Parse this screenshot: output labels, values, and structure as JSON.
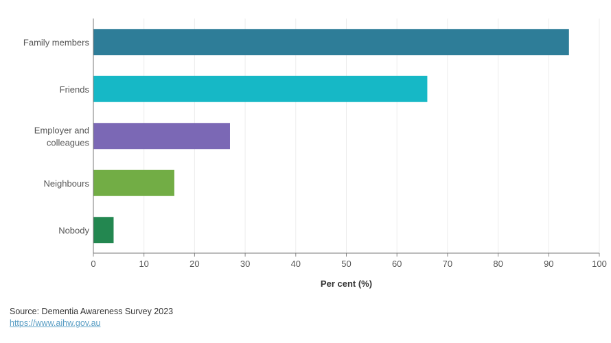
{
  "chart_data": {
    "type": "bar",
    "orientation": "horizontal",
    "categories": [
      "Family members",
      "Friends",
      "Employer and colleagues",
      "Neighbours",
      "Nobody"
    ],
    "category_lines": [
      [
        "Family members"
      ],
      [
        "Friends"
      ],
      [
        "Employer and",
        "colleagues"
      ],
      [
        "Neighbours"
      ],
      [
        "Nobody"
      ]
    ],
    "values": [
      94,
      66,
      27,
      16,
      4
    ],
    "colors": [
      "#2e7d98",
      "#16b8c6",
      "#7b68b5",
      "#72ad45",
      "#238750"
    ],
    "xlabel": "Per cent (%)",
    "ylabel": "",
    "xlim": [
      0,
      100
    ],
    "xticks": [
      0,
      10,
      20,
      30,
      40,
      50,
      60,
      70,
      80,
      90,
      100
    ],
    "grid": "vertical"
  },
  "footer": {
    "source": "Source: Dementia Awareness Survey 2023",
    "link": "https://www.aihw.gov.au"
  }
}
